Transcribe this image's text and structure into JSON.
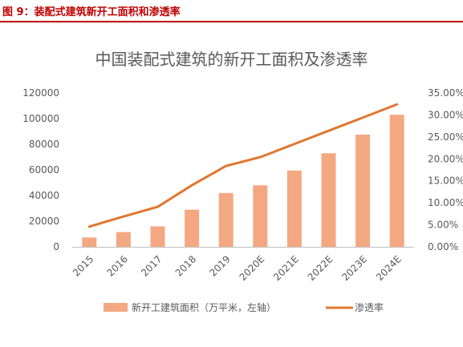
{
  "caption": "图 9：装配式建筑新开工面积和渗透率",
  "chart_data": {
    "type": "bar",
    "title": "中国装配式建筑的新开工面积及渗透率",
    "categories": [
      "2015",
      "2016",
      "2017",
      "2018",
      "2019",
      "2020E",
      "2021E",
      "2022E",
      "2023E",
      "2024E"
    ],
    "series": [
      {
        "name": "新开工建筑面积（万平米，左轴）",
        "type": "bar",
        "axis": "left",
        "color": "#f4a882",
        "values": [
          7300,
          11500,
          16000,
          29000,
          42000,
          48000,
          59500,
          73000,
          87500,
          103000
        ]
      },
      {
        "name": "渗透率",
        "type": "line",
        "axis": "right",
        "color": "#e0772f",
        "values": [
          4.6,
          6.9,
          9.1,
          14.0,
          18.4,
          20.4,
          23.4,
          26.4,
          29.4,
          32.4
        ]
      }
    ],
    "left_axis": {
      "ylim": [
        0,
        120000
      ],
      "ticks": [
        "0",
        "20000",
        "40000",
        "60000",
        "80000",
        "100000",
        "120000"
      ]
    },
    "right_axis": {
      "ylim": [
        0,
        35
      ],
      "ticks": [
        "0.00%",
        "5.00%",
        "10.00%",
        "15.00%",
        "20.00%",
        "25.00%",
        "30.00%",
        "35.00%"
      ]
    },
    "grid": false,
    "legend_position": "bottom"
  }
}
